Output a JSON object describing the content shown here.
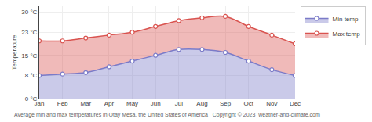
{
  "chart_data": {
    "type": "area",
    "categories": [
      "Jan",
      "Feb",
      "Mar",
      "Apr",
      "May",
      "Jun",
      "Jul",
      "Aug",
      "Sep",
      "Oct",
      "Nov",
      "Dec"
    ],
    "series": [
      {
        "name": "Max temp",
        "color": "#d9534f",
        "values": [
          20,
          20,
          21,
          22,
          23,
          25,
          27,
          28,
          28.5,
          25,
          22,
          19
        ]
      },
      {
        "name": "Min temp",
        "color": "#7b7bc8",
        "values": [
          8,
          8.5,
          9,
          11,
          13,
          15,
          17,
          17,
          16,
          13,
          10,
          8
        ]
      }
    ],
    "y_label": "Temperature",
    "ylim": [
      0,
      32
    ],
    "yticks": [
      {
        "value": 0,
        "label": "0 °C"
      },
      {
        "value": 8,
        "label": "8 °C"
      },
      {
        "value": 15,
        "label": "15 °C"
      },
      {
        "value": 23,
        "label": "23 °C"
      },
      {
        "value": 30,
        "label": "30 °C"
      }
    ],
    "grid": true,
    "legend": "upper right",
    "annotations": [
      "Average min and max temperatures in Otay Mesa, the United States of America   Copyright © 2023  weather-and-climate.com"
    ]
  }
}
